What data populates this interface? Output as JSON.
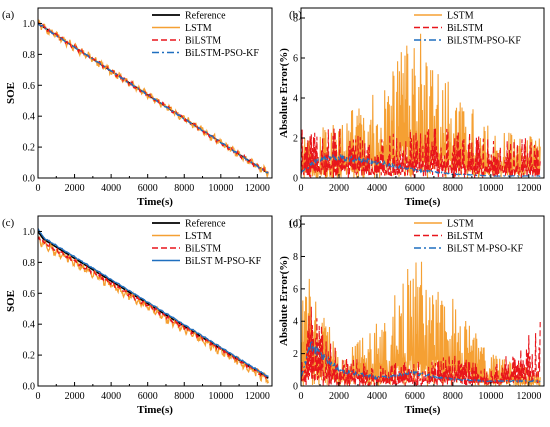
{
  "chart_data": [
    {
      "panel_label": "(a)",
      "type": "line",
      "xlabel": "Time(s)",
      "ylabel": "SOE",
      "xlim": [
        0,
        12800
      ],
      "ylim": [
        0.0,
        1.1
      ],
      "xticks": [
        "0",
        "2000",
        "4000",
        "6000",
        "8000",
        "10000",
        "12000"
      ],
      "xtick_values": [
        0,
        2000,
        4000,
        6000,
        8000,
        10000,
        12000
      ],
      "yticks": [
        "0.0",
        "0.2",
        "0.4",
        "0.6",
        "0.8",
        "1.0"
      ],
      "ytick_values": [
        0.0,
        0.2,
        0.4,
        0.6,
        0.8,
        1.0
      ],
      "legend_position": "top-right",
      "series": [
        {
          "name": "Reference",
          "color": "#000000",
          "dash": "solid",
          "x": [
            0,
            12600
          ],
          "y": [
            1.0,
            0.03
          ]
        },
        {
          "name": "LSTM",
          "color": "#F5A033",
          "dash": "solid",
          "x": [
            0,
            12600
          ],
          "y": [
            1.0,
            0.03
          ],
          "noise_amplitude": 0.03
        },
        {
          "name": "BiLSTM",
          "color": "#E8151B",
          "dash": "dashed",
          "x": [
            0,
            12600
          ],
          "y": [
            1.0,
            0.03
          ],
          "noise_amplitude": 0.015
        },
        {
          "name": "BiLSTM-PSO-KF",
          "color": "#1F6FBF",
          "dash": "dashdot",
          "x": [
            0,
            12600
          ],
          "y": [
            1.0,
            0.03
          ],
          "noise_amplitude": 0.005
        }
      ]
    },
    {
      "panel_label": "(b)",
      "type": "line",
      "xlabel": "Time(s)",
      "ylabel": "Absolute Error(%)",
      "xlim": [
        0,
        12800
      ],
      "ylim": [
        0,
        8.5
      ],
      "xticks": [
        "0",
        "2000",
        "4000",
        "6000",
        "8000",
        "10000",
        "12000"
      ],
      "xtick_values": [
        0,
        2000,
        4000,
        6000,
        8000,
        10000,
        12000
      ],
      "yticks": [
        "0",
        "2",
        "4",
        "6",
        "8"
      ],
      "ytick_values": [
        0,
        2,
        4,
        6,
        8
      ],
      "legend_position": "top-right",
      "series": [
        {
          "name": "LSTM",
          "color": "#F5A033",
          "dash": "solid",
          "x": [
            0,
            2000,
            4000,
            6000,
            8000,
            10000,
            12600
          ],
          "y": [
            2.0,
            3.0,
            4.5,
            7.7,
            4.5,
            2.5,
            2.0
          ]
        },
        {
          "name": "BiLSTM",
          "color": "#E8151B",
          "dash": "dashed",
          "x": [
            0,
            2000,
            4000,
            6000,
            8000,
            10000,
            12600
          ],
          "y": [
            2.5,
            2.5,
            2.0,
            2.5,
            2.5,
            2.0,
            2.0
          ]
        },
        {
          "name": "BiLSTM-PSO-KF",
          "color": "#1F6FBF",
          "dash": "dashdot",
          "x": [
            0,
            1000,
            2000,
            4000,
            6000,
            8000,
            10000,
            12600
          ],
          "y": [
            0.3,
            1.0,
            1.0,
            0.8,
            0.4,
            0.2,
            0.1,
            0.1
          ]
        }
      ]
    },
    {
      "panel_label": "(c)",
      "type": "line",
      "xlabel": "Time(s)",
      "ylabel": "SOE",
      "xlim": [
        0,
        12800
      ],
      "ylim": [
        0.0,
        1.1
      ],
      "xticks": [
        "0",
        "2000",
        "4000",
        "6000",
        "8000",
        "10000",
        "12000"
      ],
      "xtick_values": [
        0,
        2000,
        4000,
        6000,
        8000,
        10000,
        12000
      ],
      "yticks": [
        "0.0",
        "0.2",
        "0.4",
        "0.6",
        "0.8",
        "1.0"
      ],
      "ytick_values": [
        0.0,
        0.2,
        0.4,
        0.6,
        0.8,
        1.0
      ],
      "legend_position": "top-right",
      "series": [
        {
          "name": "Reference",
          "color": "#000000",
          "dash": "solid",
          "x": [
            0,
            300,
            12600
          ],
          "y": [
            1.0,
            0.95,
            0.05
          ]
        },
        {
          "name": "LSTM",
          "color": "#F5A033",
          "dash": "solid",
          "x": [
            0,
            300,
            12600
          ],
          "y": [
            0.95,
            0.92,
            0.04
          ],
          "noise_amplitude": 0.035
        },
        {
          "name": "BiLSTM",
          "color": "#E8151B",
          "dash": "dashed",
          "x": [
            0,
            300,
            12600
          ],
          "y": [
            0.96,
            0.93,
            0.05
          ],
          "noise_amplitude": 0.015
        },
        {
          "name": "BiLST M-PSO-KF",
          "color": "#1F6FBF",
          "dash": "solid",
          "x": [
            0,
            300,
            12600
          ],
          "y": [
            1.02,
            0.96,
            0.06
          ],
          "noise_amplitude": 0.005
        }
      ]
    },
    {
      "panel_label": "(d)",
      "type": "line",
      "xlabel": "Time(s)",
      "ylabel": "Absolute Error(%)",
      "xlim": [
        0,
        12800
      ],
      "ylim": [
        0,
        10.5
      ],
      "xticks": [
        "0",
        "2000",
        "4000",
        "6000",
        "8000",
        "10000",
        "12000"
      ],
      "xtick_values": [
        0,
        2000,
        4000,
        6000,
        8000,
        10000,
        12000
      ],
      "yticks": [
        "0",
        "2",
        "4",
        "6",
        "8",
        "10"
      ],
      "ytick_values": [
        0,
        2,
        4,
        6,
        8,
        10
      ],
      "legend_position": "top-right",
      "series": [
        {
          "name": "LSTM",
          "color": "#F5A033",
          "dash": "solid",
          "x": [
            0,
            500,
            2000,
            4000,
            6000,
            8000,
            10000,
            12600
          ],
          "y": [
            6.0,
            7.0,
            2.0,
            4.0,
            8.3,
            5.5,
            2.0,
            1.0
          ]
        },
        {
          "name": "BiLSTM",
          "color": "#E8151B",
          "dash": "dashed",
          "x": [
            0,
            500,
            2000,
            4000,
            6000,
            8000,
            10000,
            12600
          ],
          "y": [
            1.0,
            5.0,
            2.0,
            1.5,
            1.5,
            2.0,
            1.0,
            4.0
          ]
        },
        {
          "name": "BiLST M-PSO-KF",
          "color": "#1F6FBF",
          "dash": "dashdot",
          "x": [
            0,
            500,
            1000,
            2000,
            4000,
            6000,
            8000,
            10000,
            12600
          ],
          "y": [
            0.5,
            2.5,
            2.0,
            1.0,
            0.5,
            0.8,
            0.4,
            0.3,
            0.3
          ]
        }
      ]
    }
  ]
}
